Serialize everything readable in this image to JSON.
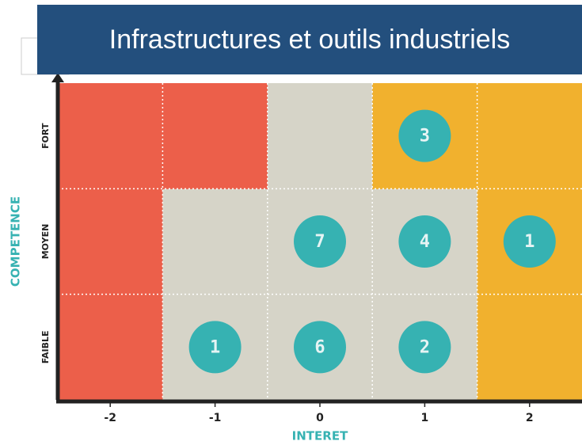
{
  "chart_data": {
    "type": "matrix",
    "title": "Infrastructures et outils industriels",
    "xlabel": "INTERET",
    "ylabel": "COMPETENCE",
    "xlim": [
      -2.5,
      2.5
    ],
    "xticks": [
      -2,
      -1,
      0,
      1,
      2
    ],
    "ycategories": [
      "FAIBLE",
      "MOYEN",
      "FORT"
    ],
    "cell_colors": [
      [
        "#ec5f4a",
        "#d6d4c8",
        "#d6d4c8",
        "#d6d4c8",
        "#f1b12e"
      ],
      [
        "#ec5f4a",
        "#d6d4c8",
        "#d6d4c8",
        "#d6d4c8",
        "#f1b12e"
      ],
      [
        "#ec5f4a",
        "#ec5f4a",
        "#d6d4c8",
        "#f1b12e",
        "#f1b12e"
      ]
    ],
    "bubble_color": "#36b2b2",
    "points": [
      {
        "x": 1,
        "y": "FORT",
        "value": 3
      },
      {
        "x": 0,
        "y": "MOYEN",
        "value": 7
      },
      {
        "x": 1,
        "y": "MOYEN",
        "value": 4
      },
      {
        "x": 2,
        "y": "MOYEN",
        "value": 1
      },
      {
        "x": -1,
        "y": "FAIBLE",
        "value": 1
      },
      {
        "x": 0,
        "y": "FAIBLE",
        "value": 6
      },
      {
        "x": 1,
        "y": "FAIBLE",
        "value": 2
      }
    ]
  }
}
